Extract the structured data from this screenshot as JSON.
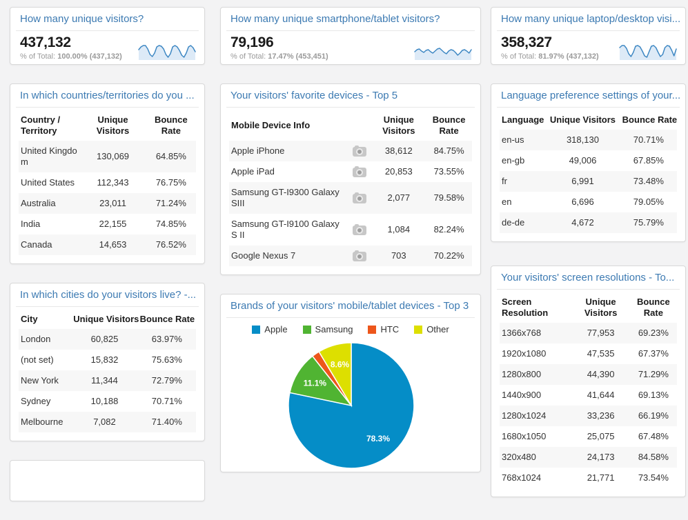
{
  "colors": {
    "title_link": "#3c7ab2",
    "value_text": "#1a1a1a",
    "muted_text": "#999999",
    "spark_line": "#3d87c3",
    "spark_fill": "#ddeaf7",
    "row_stripe": "#f7f7f7"
  },
  "metrics": [
    {
      "title": "How many unique visitors?",
      "value": "437,132",
      "total_label": "% of Total:",
      "total_value": "100.00% (437,132)",
      "sparkline": [
        10,
        6,
        4,
        4,
        9,
        17,
        20,
        15,
        6,
        4,
        5,
        9,
        17,
        21,
        16,
        6,
        4,
        6,
        11,
        18,
        21,
        15,
        6,
        4,
        7,
        13
      ]
    },
    {
      "title": "How many unique smartphone/tablet visitors?",
      "value": "79,196",
      "total_label": "% of Total:",
      "total_value": "17.47% (453,451)",
      "sparkline": [
        13,
        10,
        9,
        12,
        14,
        11,
        10,
        13,
        15,
        12,
        9,
        8,
        11,
        14,
        16,
        12,
        10,
        11,
        14,
        18,
        15,
        11,
        10,
        12,
        15,
        10
      ]
    },
    {
      "title": "How many unique laptop/desktop visi...",
      "value": "358,327",
      "total_label": "% of Total:",
      "total_value": "81.97% (437,132)",
      "sparkline": [
        7,
        4,
        4,
        8,
        16,
        20,
        14,
        5,
        4,
        6,
        12,
        19,
        21,
        13,
        5,
        4,
        7,
        14,
        20,
        17,
        7,
        4,
        5,
        11,
        19,
        9
      ]
    }
  ],
  "widgets": {
    "countries": {
      "title": "In which countries/territories do you ...",
      "table": {
        "columns": [
          "Country / Territory",
          "Unique Visitors",
          "Bounce Rate"
        ],
        "rows": [
          [
            "United Kingdom",
            "130,069",
            "64.85%"
          ],
          [
            "United States",
            "112,343",
            "76.75%"
          ],
          [
            "Australia",
            "23,011",
            "71.24%"
          ],
          [
            "India",
            "22,155",
            "74.85%"
          ],
          [
            "Canada",
            "14,653",
            "76.52%"
          ]
        ]
      }
    },
    "devices": {
      "title": "Your visitors' favorite devices - Top 5",
      "table": {
        "columns": [
          "Mobile Device Info",
          "Unique Visitors",
          "Bounce Rate"
        ],
        "rows": [
          [
            "Apple iPhone",
            "38,612",
            "84.75%"
          ],
          [
            "Apple iPad",
            "20,853",
            "73.55%"
          ],
          [
            "Samsung GT-I9300 Galaxy SIII",
            "2,077",
            "79.58%"
          ],
          [
            "Samsung GT-I9100 Galaxy S II",
            "1,084",
            "82.24%"
          ],
          [
            "Google Nexus 7",
            "703",
            "70.22%"
          ]
        ]
      }
    },
    "languages": {
      "title": "Language preference settings of your...",
      "table": {
        "columns": [
          "Language",
          "Unique Visitors",
          "Bounce Rate"
        ],
        "rows": [
          [
            "en-us",
            "318,130",
            "70.71%"
          ],
          [
            "en-gb",
            "49,006",
            "67.85%"
          ],
          [
            "fr",
            "6,991",
            "73.48%"
          ],
          [
            "en",
            "6,696",
            "79.05%"
          ],
          [
            "de-de",
            "4,672",
            "75.79%"
          ]
        ]
      }
    },
    "cities": {
      "title": "In which cities do your visitors live? -...",
      "table": {
        "columns": [
          "City",
          "Unique Visitors",
          "Bounce Rate"
        ],
        "rows": [
          [
            "London",
            "60,825",
            "63.97%"
          ],
          [
            "(not set)",
            "15,832",
            "75.63%"
          ],
          [
            "New York",
            "11,344",
            "72.79%"
          ],
          [
            "Sydney",
            "10,188",
            "70.71%"
          ],
          [
            "Melbourne",
            "7,082",
            "71.40%"
          ]
        ]
      }
    },
    "brands": {
      "title": "Brands of your visitors' mobile/tablet devices - Top 3"
    },
    "resolutions": {
      "title": "Your visitors' screen resolutions - To...",
      "table": {
        "columns": [
          "Screen Resolution",
          "Unique Visitors",
          "Bounce Rate"
        ],
        "rows": [
          [
            "1366x768",
            "77,953",
            "69.23%"
          ],
          [
            "1920x1080",
            "47,535",
            "67.37%"
          ],
          [
            "1280x800",
            "44,390",
            "71.29%"
          ],
          [
            "1440x900",
            "41,644",
            "69.13%"
          ],
          [
            "1280x1024",
            "33,236",
            "66.19%"
          ],
          [
            "1680x1050",
            "25,075",
            "67.48%"
          ],
          [
            "320x480",
            "24,173",
            "84.58%"
          ],
          [
            "768x1024",
            "21,771",
            "73.54%"
          ]
        ]
      }
    }
  },
  "chart_data": {
    "id": "mobile-brands-pie",
    "type": "pie",
    "title": "Brands of your visitors' mobile/tablet devices - Top 3",
    "labels": [
      "Apple",
      "Samsung",
      "HTC",
      "Other"
    ],
    "values": [
      78.3,
      11.1,
      2.0,
      8.6
    ],
    "colors": [
      "#058dc7",
      "#50b432",
      "#ed561b",
      "#dddf00"
    ],
    "unit": "%",
    "legend_position": "top",
    "shown_slice_labels": [
      "78.3%",
      "11.1%",
      "8.6%"
    ]
  }
}
